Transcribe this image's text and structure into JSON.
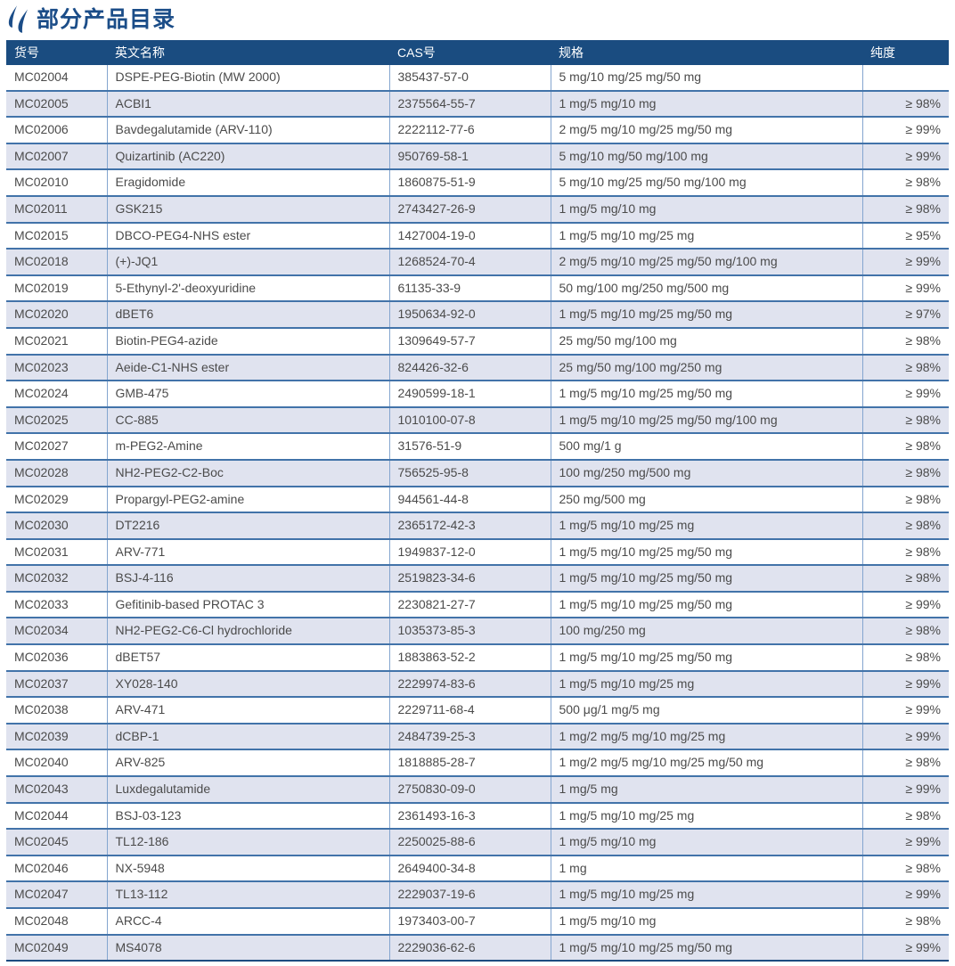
{
  "page": {
    "title": "部分产品目录",
    "title_icon": "flame-icon"
  },
  "colors": {
    "header_bg": "#1a4c80",
    "header_text": "#ffffff",
    "title": "#1b4d88",
    "stripe_bg": "#e0e3ef",
    "row_border": "#4273a9",
    "col_border": "#84a5cf",
    "bottom_border": "#1d4b80",
    "text": "#4b4b4b"
  },
  "table": {
    "columns": [
      {
        "key": "item-no",
        "label": "货号",
        "align": "left"
      },
      {
        "key": "name-en",
        "label": "英文名称",
        "align": "left"
      },
      {
        "key": "cas-no",
        "label": "CAS号",
        "align": "left"
      },
      {
        "key": "spec",
        "label": "规格",
        "align": "left"
      },
      {
        "key": "purity",
        "label": "纯度",
        "align": "right"
      }
    ],
    "rows": [
      [
        "MC02004",
        "DSPE-PEG-Biotin (MW 2000)",
        "385437-57-0",
        "5 mg/10 mg/25 mg/50 mg",
        ""
      ],
      [
        "MC02005",
        "ACBI1",
        "2375564-55-7",
        "1 mg/5 mg/10 mg",
        "≥ 98%"
      ],
      [
        "MC02006",
        "Bavdegalutamide (ARV-110)",
        "2222112-77-6",
        "2 mg/5 mg/10 mg/25 mg/50 mg",
        "≥ 99%"
      ],
      [
        "MC02007",
        "Quizartinib (AC220)",
        "950769-58-1",
        "5 mg/10 mg/50 mg/100 mg",
        "≥ 99%"
      ],
      [
        "MC02010",
        "Eragidomide",
        "1860875-51-9",
        "5 mg/10 mg/25 mg/50 mg/100 mg",
        "≥ 98%"
      ],
      [
        "MC02011",
        "GSK215",
        "2743427-26-9",
        "1 mg/5 mg/10 mg",
        "≥ 98%"
      ],
      [
        "MC02015",
        "DBCO-PEG4-NHS ester",
        "1427004-19-0",
        "1 mg/5 mg/10 mg/25 mg",
        "≥ 95%"
      ],
      [
        "MC02018",
        "(+)-JQ1",
        "1268524-70-4",
        "2 mg/5 mg/10 mg/25 mg/50 mg/100 mg",
        "≥ 99%"
      ],
      [
        "MC02019",
        "5-Ethynyl-2'-deoxyuridine",
        "61135-33-9",
        "50 mg/100 mg/250 mg/500 mg",
        "≥ 99%"
      ],
      [
        "MC02020",
        "dBET6",
        "1950634-92-0",
        "1 mg/5 mg/10 mg/25 mg/50 mg",
        "≥ 97%"
      ],
      [
        "MC02021",
        "Biotin-PEG4-azide",
        "1309649-57-7",
        "25 mg/50 mg/100 mg",
        "≥ 98%"
      ],
      [
        "MC02023",
        "Aeide-C1-NHS ester",
        "824426-32-6",
        "25 mg/50 mg/100 mg/250 mg",
        "≥ 98%"
      ],
      [
        "MC02024",
        "GMB-475",
        "2490599-18-1",
        "1 mg/5 mg/10 mg/25 mg/50 mg",
        "≥ 99%"
      ],
      [
        "MC02025",
        "CC-885",
        "1010100-07-8",
        "1 mg/5 mg/10 mg/25 mg/50 mg/100 mg",
        "≥ 98%"
      ],
      [
        "MC02027",
        "m-PEG2-Amine",
        "31576-51-9",
        "500 mg/1 g",
        "≥ 98%"
      ],
      [
        "MC02028",
        "NH2-PEG2-C2-Boc",
        "756525-95-8",
        "100 mg/250 mg/500 mg",
        "≥ 98%"
      ],
      [
        "MC02029",
        "Propargyl-PEG2-amine",
        "944561-44-8",
        "250 mg/500 mg",
        "≥ 98%"
      ],
      [
        "MC02030",
        "DT2216",
        "2365172-42-3",
        "1 mg/5 mg/10 mg/25 mg",
        "≥ 98%"
      ],
      [
        "MC02031",
        "ARV-771",
        "1949837-12-0",
        "1 mg/5 mg/10 mg/25 mg/50 mg",
        "≥ 98%"
      ],
      [
        "MC02032",
        "BSJ-4-116",
        "2519823-34-6",
        "1 mg/5 mg/10 mg/25 mg/50 mg",
        "≥ 98%"
      ],
      [
        "MC02033",
        "Gefitinib-based PROTAC 3",
        "2230821-27-7",
        "1 mg/5 mg/10 mg/25 mg/50 mg",
        "≥ 99%"
      ],
      [
        "MC02034",
        "NH2-PEG2-C6-Cl hydrochloride",
        "1035373-85-3",
        "100 mg/250 mg",
        "≥ 98%"
      ],
      [
        "MC02036",
        "dBET57",
        "1883863-52-2",
        "1 mg/5 mg/10 mg/25 mg/50 mg",
        "≥ 98%"
      ],
      [
        "MC02037",
        "XY028-140",
        "2229974-83-6",
        "1 mg/5 mg/10 mg/25 mg",
        "≥ 99%"
      ],
      [
        "MC02038",
        "ARV-471",
        "2229711-68-4",
        "500 μg/1 mg/5 mg",
        "≥ 99%"
      ],
      [
        "MC02039",
        "dCBP-1",
        "2484739-25-3",
        "1 mg/2 mg/5 mg/10 mg/25 mg",
        "≥ 99%"
      ],
      [
        "MC02040",
        "ARV-825",
        "1818885-28-7",
        "1 mg/2 mg/5 mg/10 mg/25 mg/50 mg",
        "≥ 98%"
      ],
      [
        "MC02043",
        "Luxdegalutamide",
        "2750830-09-0",
        "1 mg/5 mg",
        "≥ 99%"
      ],
      [
        "MC02044",
        "BSJ-03-123",
        "2361493-16-3",
        "1 mg/5 mg/10 mg/25 mg",
        "≥ 98%"
      ],
      [
        "MC02045",
        "TL12-186",
        "2250025-88-6",
        "1 mg/5 mg/10 mg",
        "≥ 99%"
      ],
      [
        "MC02046",
        "NX-5948",
        "2649400-34-8",
        "1 mg",
        "≥ 98%"
      ],
      [
        "MC02047",
        "TL13-112",
        "2229037-19-6",
        "1 mg/5 mg/10 mg/25 mg",
        "≥ 99%"
      ],
      [
        "MC02048",
        "ARCC-4",
        "1973403-00-7",
        "1 mg/5 mg/10 mg",
        "≥ 98%"
      ],
      [
        "MC02049",
        "MS4078",
        "2229036-62-6",
        "1 mg/5 mg/10 mg/25 mg/50 mg",
        "≥ 99%"
      ]
    ]
  }
}
